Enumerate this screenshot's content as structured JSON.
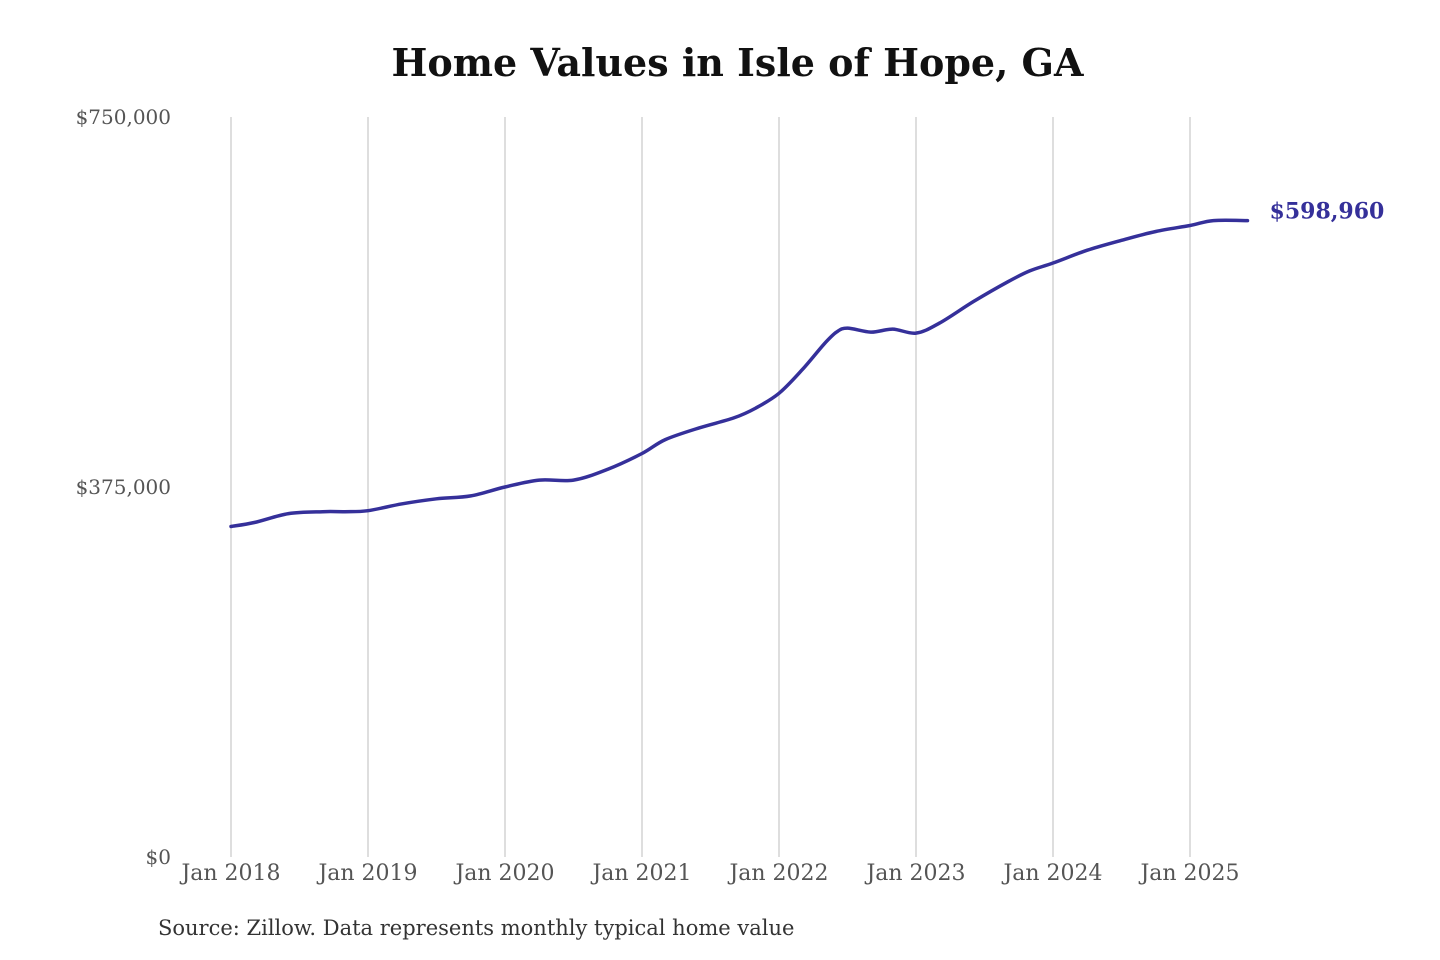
{
  "chart_data": {
    "type": "line",
    "title": "Home Values in Isle of Hope, GA",
    "xlabel": "",
    "ylabel": "",
    "ylim": [
      0,
      750000
    ],
    "y_ticks": [
      {
        "value": 0,
        "label": "$0"
      },
      {
        "value": 375000,
        "label": "$375,000"
      },
      {
        "value": 750000,
        "label": "$750,000"
      }
    ],
    "x_ticks": [
      {
        "value": 2018.0,
        "label": "Jan 2018"
      },
      {
        "value": 2019.0,
        "label": "Jan 2019"
      },
      {
        "value": 2020.0,
        "label": "Jan 2020"
      },
      {
        "value": 2021.0,
        "label": "Jan 2021"
      },
      {
        "value": 2022.0,
        "label": "Jan 2022"
      },
      {
        "value": 2023.0,
        "label": "Jan 2023"
      },
      {
        "value": 2024.0,
        "label": "Jan 2024"
      },
      {
        "value": 2025.0,
        "label": "Jan 2025"
      }
    ],
    "xlim": [
      2018.0,
      2025.42
    ],
    "grid": "vertical",
    "legend": "none",
    "line_color": "#35309a",
    "end_label": "$598,960",
    "series": [
      {
        "x": [
          2018.0,
          2018.17,
          2018.42,
          2018.67,
          2018.83,
          2019.0,
          2019.25,
          2019.5,
          2019.75,
          2020.0,
          2020.25,
          2020.5,
          2020.75,
          2021.0,
          2021.17,
          2021.42,
          2021.67,
          2021.83,
          2022.0,
          2022.17,
          2022.33,
          2022.42,
          2022.5,
          2022.67,
          2022.83,
          2023.0,
          2023.17,
          2023.42,
          2023.67,
          2023.83,
          2024.0,
          2024.25,
          2024.5,
          2024.75,
          2025.0,
          2025.17,
          2025.42
        ],
        "values": [
          335000,
          339000,
          348000,
          350000,
          350000,
          351000,
          358000,
          363000,
          366000,
          375000,
          382000,
          382000,
          393000,
          409000,
          423000,
          435000,
          445000,
          455000,
          470000,
          494000,
          520000,
          532000,
          536000,
          532000,
          535000,
          531000,
          541000,
          563000,
          583000,
          594000,
          602000,
          615000,
          625000,
          634000,
          640000,
          645000,
          598960
        ]
      }
    ]
  },
  "source_note": "Source: Zillow. Data represents monthly typical home value"
}
